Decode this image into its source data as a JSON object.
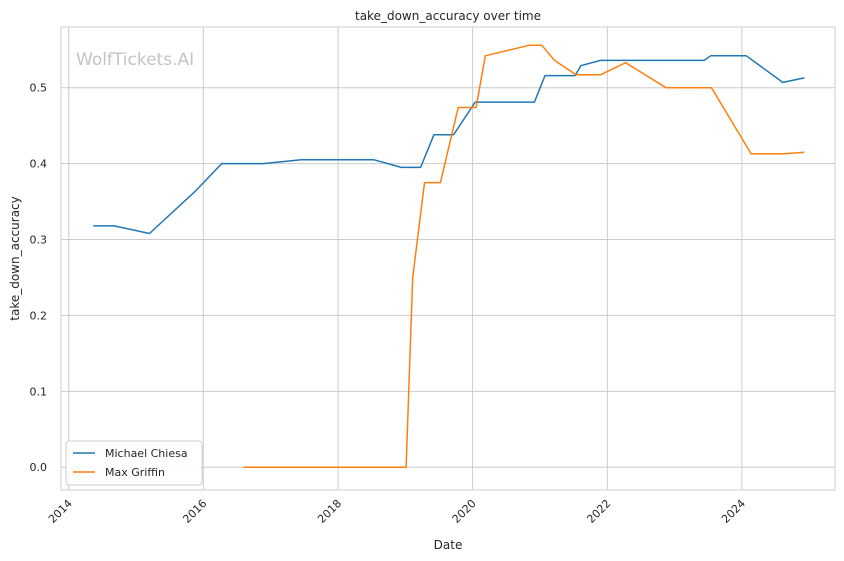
{
  "chart_data": {
    "type": "line",
    "title": "take_down_accuracy over time",
    "xlabel": "Date",
    "ylabel": "take_down_accuracy",
    "watermark": "WolfTickets.AI",
    "xlim": [
      "2013-11-20",
      "2025-05-20"
    ],
    "ylim": [
      -0.03,
      0.58
    ],
    "x_ticks": [
      "2014",
      "2016",
      "2018",
      "2020",
      "2022",
      "2024"
    ],
    "y_ticks": [
      "0.0",
      "0.1",
      "0.2",
      "0.3",
      "0.4",
      "0.5"
    ],
    "grid": true,
    "legend_position": "lower-left",
    "series": [
      {
        "name": "Michael Chiesa",
        "color": "#1f77b4",
        "points": [
          [
            "2014-05-15",
            0.318
          ],
          [
            "2014-09-05",
            0.318
          ],
          [
            "2015-03-15",
            0.308
          ],
          [
            "2015-11-20",
            0.364
          ],
          [
            "2016-04-10",
            0.4
          ],
          [
            "2016-11-20",
            0.4
          ],
          [
            "2017-06-15",
            0.405
          ],
          [
            "2018-07-15",
            0.405
          ],
          [
            "2018-12-10",
            0.395
          ],
          [
            "2019-03-25",
            0.395
          ],
          [
            "2019-06-05",
            0.438
          ],
          [
            "2019-09-20",
            0.438
          ],
          [
            "2020-01-15",
            0.481
          ],
          [
            "2020-12-01",
            0.481
          ],
          [
            "2021-01-28",
            0.516
          ],
          [
            "2021-07-10",
            0.516
          ],
          [
            "2021-08-10",
            0.529
          ],
          [
            "2021-11-25",
            0.536
          ],
          [
            "2023-06-10",
            0.536
          ],
          [
            "2023-07-15",
            0.542
          ],
          [
            "2024-01-25",
            0.542
          ],
          [
            "2024-08-10",
            0.507
          ],
          [
            "2024-12-05",
            0.513
          ]
        ]
      },
      {
        "name": "Max Griffin",
        "color": "#ff7f0e",
        "points": [
          [
            "2016-08-05",
            0.0
          ],
          [
            "2019-01-05",
            0.0
          ],
          [
            "2019-02-10",
            0.25
          ],
          [
            "2019-04-15",
            0.375
          ],
          [
            "2019-07-10",
            0.375
          ],
          [
            "2019-10-15",
            0.474
          ],
          [
            "2020-01-20",
            0.474
          ],
          [
            "2020-03-10",
            0.542
          ],
          [
            "2020-11-05",
            0.556
          ],
          [
            "2021-01-10",
            0.556
          ],
          [
            "2021-03-20",
            0.536
          ],
          [
            "2021-07-15",
            0.517
          ],
          [
            "2021-11-25",
            0.517
          ],
          [
            "2022-04-10",
            0.533
          ],
          [
            "2022-11-15",
            0.5
          ],
          [
            "2023-07-20",
            0.5
          ],
          [
            "2024-02-20",
            0.413
          ],
          [
            "2024-08-15",
            0.413
          ],
          [
            "2024-12-05",
            0.415
          ]
        ]
      }
    ]
  }
}
